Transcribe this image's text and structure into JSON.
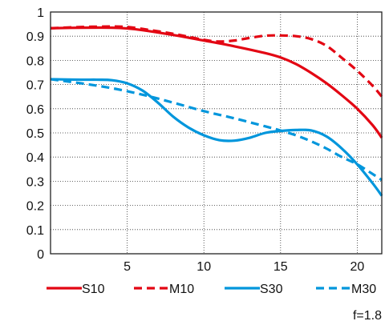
{
  "chart_data": {
    "type": "line",
    "title": "",
    "xlabel": "",
    "ylabel": "",
    "xlim": [
      0,
      21.6
    ],
    "ylim": [
      0,
      1
    ],
    "xticks": [
      5,
      10,
      15,
      20
    ],
    "yticks": [
      0,
      0.1,
      0.2,
      0.3,
      0.4,
      0.5,
      0.6,
      0.7,
      0.8,
      0.9,
      1
    ],
    "ytick_labels": [
      "0",
      "0.1",
      "0.2",
      "0.3",
      "0.4",
      "0.5",
      "0.6",
      "0.7",
      "0.8",
      "0.9",
      "1"
    ],
    "grid": true,
    "legend_position": "bottom",
    "annotation": "f=1.8",
    "series": [
      {
        "name": "S10",
        "color": "#e30613",
        "dash": "solid",
        "x": [
          0,
          2,
          4,
          5,
          6,
          8,
          10,
          12,
          14,
          15,
          16,
          17,
          18,
          19,
          20,
          21,
          21.6
        ],
        "y": [
          0.933,
          0.935,
          0.935,
          0.932,
          0.925,
          0.905,
          0.882,
          0.858,
          0.83,
          0.812,
          0.785,
          0.748,
          0.705,
          0.655,
          0.6,
          0.532,
          0.48
        ]
      },
      {
        "name": "M10",
        "color": "#e30613",
        "dash": "dashed",
        "x": [
          0,
          2,
          4,
          5,
          6,
          8,
          10,
          11,
          12,
          13,
          14,
          15,
          16,
          17,
          18,
          19,
          20,
          21,
          21.6
        ],
        "y": [
          0.933,
          0.938,
          0.94,
          0.938,
          0.93,
          0.91,
          0.885,
          0.878,
          0.882,
          0.893,
          0.902,
          0.903,
          0.9,
          0.888,
          0.86,
          0.81,
          0.757,
          0.695,
          0.65
        ]
      },
      {
        "name": "S30",
        "color": "#0096dc",
        "dash": "solid",
        "x": [
          0,
          2,
          3,
          4,
          5,
          6,
          7,
          8,
          9,
          10,
          11,
          12,
          13,
          14,
          15,
          16,
          17,
          18,
          19,
          20,
          21,
          21.6
        ],
        "y": [
          0.722,
          0.72,
          0.72,
          0.718,
          0.705,
          0.675,
          0.625,
          0.567,
          0.522,
          0.49,
          0.47,
          0.468,
          0.48,
          0.5,
          0.508,
          0.512,
          0.51,
          0.485,
          0.435,
          0.37,
          0.292,
          0.24
        ]
      },
      {
        "name": "M30",
        "color": "#0096dc",
        "dash": "dashed",
        "x": [
          0,
          2,
          4,
          6,
          8,
          10,
          12,
          14,
          15,
          16,
          17,
          18,
          19,
          20,
          21,
          21.6
        ],
        "y": [
          0.722,
          0.705,
          0.685,
          0.658,
          0.625,
          0.59,
          0.56,
          0.527,
          0.51,
          0.49,
          0.465,
          0.435,
          0.4,
          0.37,
          0.33,
          0.305
        ]
      }
    ]
  }
}
